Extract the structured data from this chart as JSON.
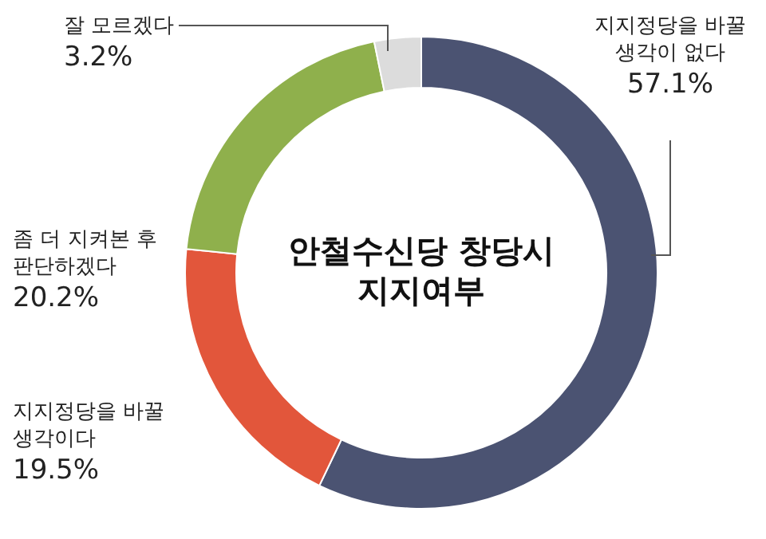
{
  "chart_data": {
    "type": "donut",
    "title": "안철수신당 창당시 지지여부",
    "categories": [
      "지지정당을 바꿀 생각이 없다",
      "지지정당을 바꿀 생각이다",
      "좀 더 지켜본 후 판단하겠다",
      "잘 모르겠다"
    ],
    "values": [
      57.1,
      19.5,
      20.2,
      3.2
    ],
    "value_labels": [
      "57.1%",
      "19.5%",
      "20.2%",
      "3.2%"
    ],
    "colors": [
      "#4b5372",
      "#e2563b",
      "#8fb04c",
      "#dcdcdc"
    ],
    "legend": false
  }
}
